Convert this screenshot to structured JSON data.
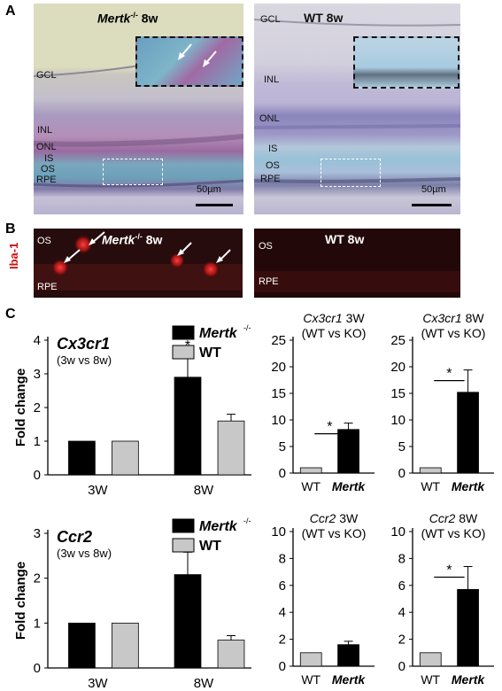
{
  "panels": {
    "A": "A",
    "B": "B",
    "C": "C"
  },
  "panel_a": {
    "left_title": "Mertk",
    "left_title_sup": "-/-",
    "left_title_age": " 8w",
    "right_title": "WT 8w",
    "left_layers": {
      "gcl": "GCL",
      "inl": "INL",
      "onl": "ONL",
      "is": "IS",
      "os": "OS",
      "rpe": "RPE"
    },
    "right_layers": {
      "gcl": "GCL",
      "inl": "INL",
      "onl": "ONL",
      "is": "IS",
      "os": "OS",
      "rpe": "RPE"
    },
    "scale_bar": "50µm"
  },
  "panel_b": {
    "stain": "Iba-1",
    "left_title": "Mertk",
    "left_title_sup": "-/-",
    "left_title_age": " 8w",
    "right_title": "WT 8w",
    "left_layers": {
      "os": "OS",
      "rpe": "RPE"
    },
    "right_layers": {
      "os": "OS",
      "rpe": "RPE"
    }
  },
  "colors": {
    "mertk": "#000000",
    "wt": "#c8c8c8"
  },
  "chart_data": [
    {
      "type": "bar",
      "title": "Cx3cr1",
      "subtitle": "(3w vs 8w)",
      "ylabel": "Fold change",
      "categories": [
        "3W",
        "8W"
      ],
      "ylim": [
        0,
        4
      ],
      "yticks": [
        "0",
        "1",
        "2",
        "3",
        "4"
      ],
      "legend": [
        "Mertk",
        "WT"
      ],
      "legend_sup": "-/-",
      "series": [
        {
          "name": "Mertk",
          "values": [
            1.0,
            2.9
          ],
          "errors": [
            0,
            0.7
          ]
        },
        {
          "name": "WT",
          "values": [
            1.0,
            1.6
          ],
          "errors": [
            0,
            0.2
          ]
        }
      ],
      "annotations": [
        "*"
      ]
    },
    {
      "type": "bar",
      "title": "Cx3cr1 3W",
      "subtitle": "(WT vs KO)",
      "categories": [
        "WT",
        "Mertk"
      ],
      "ylim": [
        0,
        25
      ],
      "yticks": [
        "0",
        "5",
        "10",
        "15",
        "20",
        "25"
      ],
      "values": [
        1.0,
        8.2
      ],
      "errors": [
        0,
        1.2
      ],
      "annotations": [
        "*"
      ]
    },
    {
      "type": "bar",
      "title": "Cx3cr1 8W",
      "subtitle": "(WT vs KO)",
      "categories": [
        "WT",
        "Mertk"
      ],
      "ylim": [
        0,
        25
      ],
      "yticks": [
        "0",
        "5",
        "10",
        "15",
        "20",
        "25"
      ],
      "values": [
        1.0,
        15.2
      ],
      "errors": [
        0,
        4.2
      ],
      "annotations": [
        "*"
      ]
    },
    {
      "type": "bar",
      "title": "Ccr2",
      "subtitle": "(3w vs 8w)",
      "ylabel": "Fold change",
      "categories": [
        "3W",
        "8W"
      ],
      "ylim": [
        0,
        3
      ],
      "yticks": [
        "0",
        "1",
        "2",
        "3"
      ],
      "legend": [
        "Mertk",
        "WT"
      ],
      "legend_sup": "-/-",
      "series": [
        {
          "name": "Mertk",
          "values": [
            1.0,
            2.08
          ],
          "errors": [
            0,
            0.5
          ]
        },
        {
          "name": "WT",
          "values": [
            1.0,
            0.62
          ],
          "errors": [
            0,
            0.1
          ]
        }
      ],
      "annotations": [
        "*"
      ]
    },
    {
      "type": "bar",
      "title": "Ccr2 3W",
      "subtitle": "(WT vs KO)",
      "categories": [
        "WT",
        "Mertk"
      ],
      "ylim": [
        0,
        10
      ],
      "yticks": [
        "0",
        "2",
        "4",
        "6",
        "8",
        "10"
      ],
      "values": [
        1.0,
        1.6
      ],
      "errors": [
        0,
        0.25
      ],
      "annotations": []
    },
    {
      "type": "bar",
      "title": "Ccr2 8W",
      "subtitle": "(WT vs KO)",
      "categories": [
        "WT",
        "Mertk"
      ],
      "ylim": [
        0,
        10
      ],
      "yticks": [
        "0",
        "2",
        "4",
        "6",
        "8",
        "10"
      ],
      "values": [
        1.0,
        5.7
      ],
      "errors": [
        0,
        1.7
      ],
      "annotations": [
        "*"
      ]
    }
  ]
}
